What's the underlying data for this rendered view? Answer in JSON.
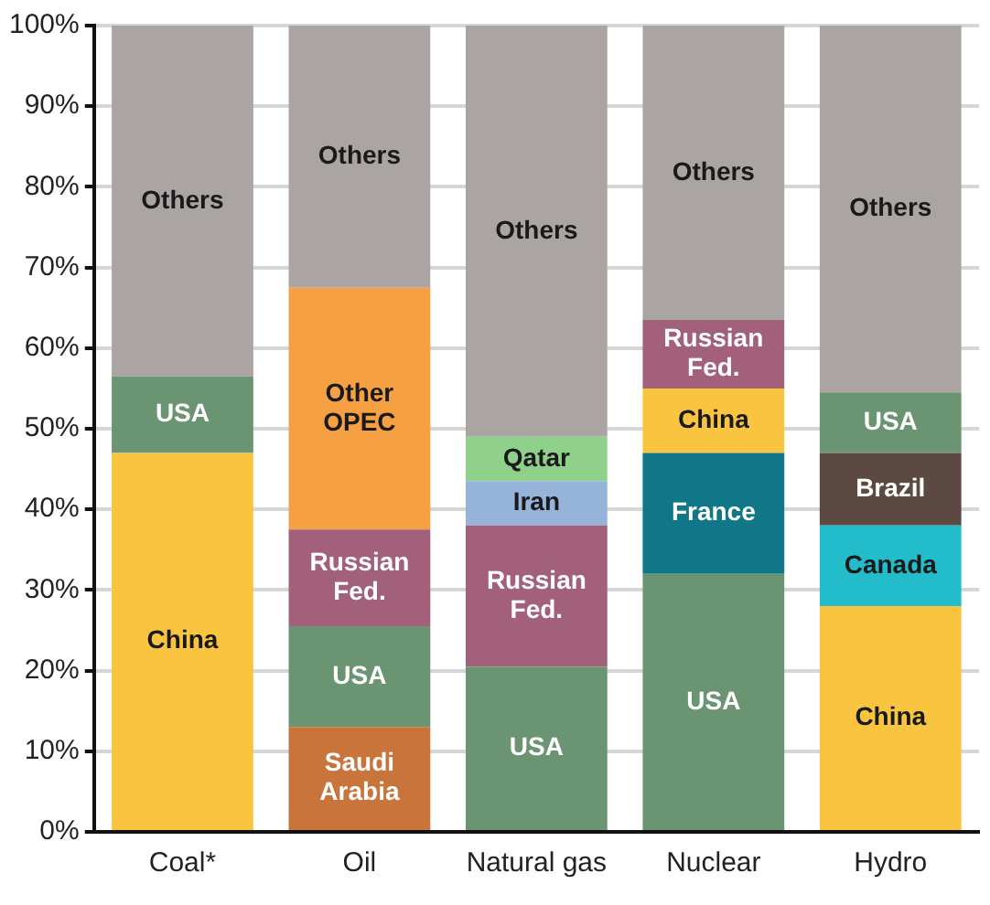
{
  "chart_data": {
    "type": "bar",
    "stacked": true,
    "grid": "y",
    "categories": [
      "Coal*",
      "Oil",
      "Natural gas",
      "Nuclear",
      "Hydro"
    ],
    "ylim": [
      0,
      100
    ],
    "yticks": [
      {
        "value": 0,
        "label": "0%"
      },
      {
        "value": 10,
        "label": "10%"
      },
      {
        "value": 20,
        "label": "20%"
      },
      {
        "value": 30,
        "label": "30%"
      },
      {
        "value": 40,
        "label": "40%"
      },
      {
        "value": 50,
        "label": "50%"
      },
      {
        "value": 60,
        "label": "60%"
      },
      {
        "value": 70,
        "label": "70%"
      },
      {
        "value": 80,
        "label": "80%"
      },
      {
        "value": 90,
        "label": "90%"
      },
      {
        "value": 100,
        "label": "100%"
      }
    ],
    "series": [
      {
        "values": [
          47,
          13,
          20.5,
          32,
          28
        ],
        "colors": [
          "#f9c440",
          "#c8743a",
          "#6b9572",
          "#6b9572",
          "#f9c440"
        ],
        "value_labels": [
          "China",
          "Saudi Arabia",
          "USA",
          "USA",
          "China"
        ]
      },
      {
        "values": [
          9.5,
          12.5,
          17.5,
          15,
          10
        ],
        "colors": [
          "#6b9572",
          "#6b9572",
          "#a2607a",
          "#0f7787",
          "#23bccb"
        ],
        "value_labels": [
          "USA",
          "USA",
          "Russian Fed.",
          "France",
          "Canada"
        ]
      },
      {
        "values": [
          43.5,
          12,
          5.5,
          8,
          9
        ],
        "colors": [
          "#aaa5a3",
          "#a2607a",
          "#96b3d9",
          "#f9c440",
          "#5c4a42"
        ],
        "value_labels": [
          "Others",
          "Russian Fed.",
          "Iran",
          "China",
          "Brazil"
        ]
      },
      {
        "values": [
          null,
          30,
          5.5,
          8.5,
          7.5
        ],
        "colors": [
          null,
          "#f5a042",
          "#8fd08a",
          "#a2607a",
          "#6b9572"
        ],
        "value_labels": [
          null,
          "Other OPEC",
          "Qatar",
          "Russian Fed.",
          "USA"
        ]
      },
      {
        "values": [
          null,
          32.5,
          51,
          36.5,
          45.5
        ],
        "colors": [
          null,
          "#aaa5a3",
          "#aaa5a3",
          "#aaa5a3",
          "#aaa5a3"
        ],
        "value_labels": [
          null,
          "Others",
          "Others",
          "Others",
          "Others"
        ]
      }
    ]
  }
}
